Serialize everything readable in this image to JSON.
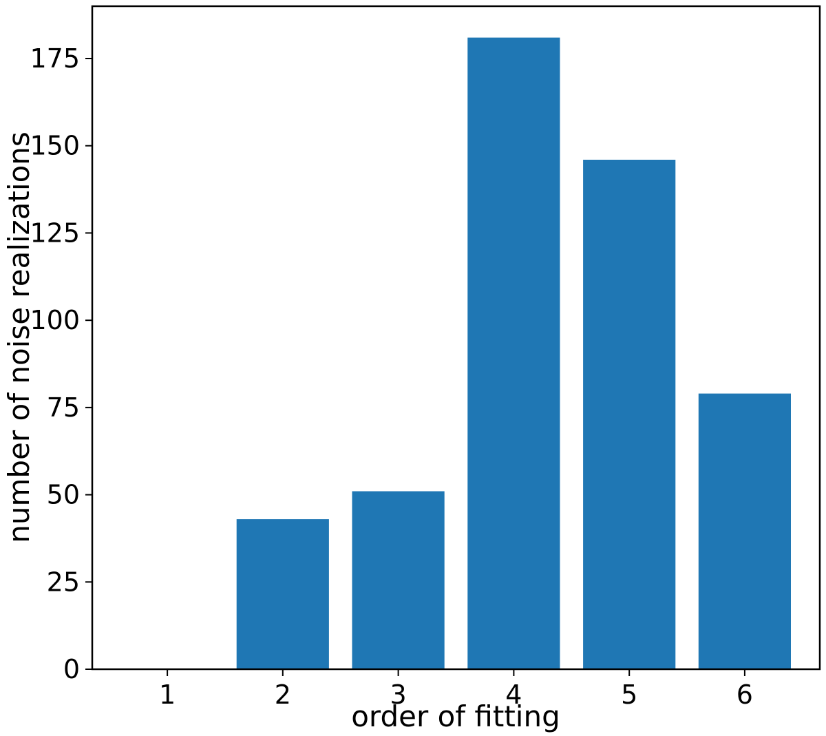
{
  "chart_data": {
    "type": "bar",
    "categories": [
      "1",
      "2",
      "3",
      "4",
      "5",
      "6"
    ],
    "values": [
      0,
      43,
      51,
      181,
      146,
      79
    ],
    "xlabel": "order of fitting",
    "ylabel": "number of noise realizations",
    "ylim": [
      0,
      190
    ],
    "yticks": [
      0,
      25,
      50,
      75,
      100,
      125,
      150,
      175
    ],
    "grid": false,
    "legend": "none",
    "bar_color": "#1f77b4"
  }
}
